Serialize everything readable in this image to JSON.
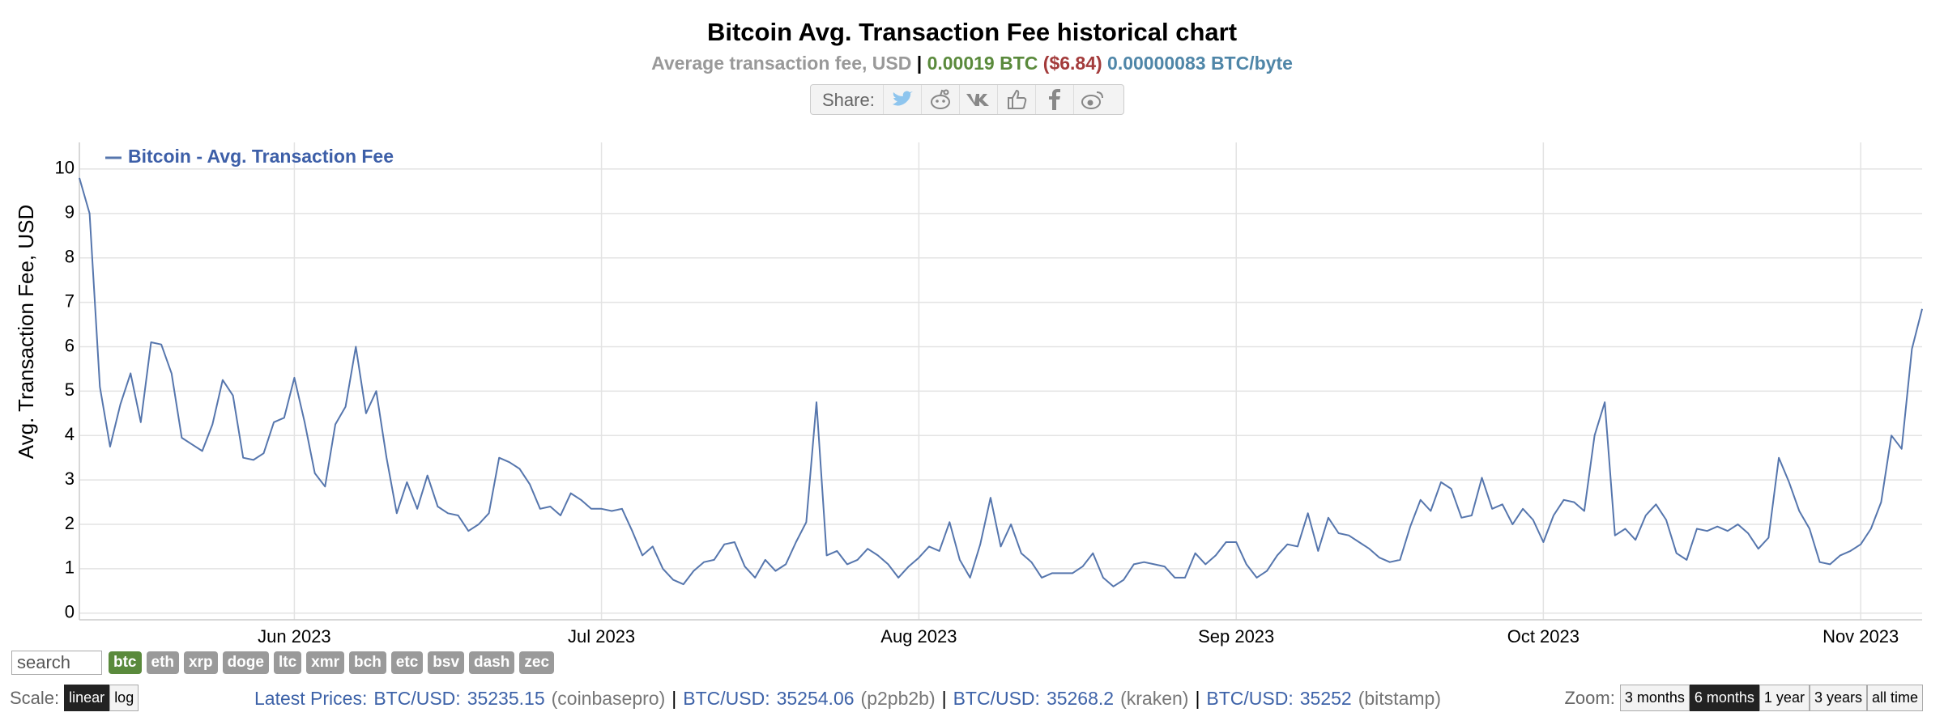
{
  "chart_data": {
    "type": "line",
    "title": "Bitcoin Avg. Transaction Fee historical chart",
    "ylabel": "Avg. Transaction Fee, USD",
    "categories": [
      null,
      null,
      null,
      null,
      null,
      null,
      null,
      null,
      null,
      null,
      null,
      null,
      null,
      null,
      null,
      null,
      null,
      null,
      null,
      null,
      null,
      "Jun 2023",
      null,
      null,
      null,
      null,
      null,
      null,
      null,
      null,
      null,
      null,
      null,
      null,
      null,
      null,
      null,
      null,
      null,
      null,
      null,
      null,
      null,
      null,
      null,
      null,
      null,
      null,
      null,
      null,
      null,
      "Jul 2023",
      null,
      null,
      null,
      null,
      null,
      null,
      null,
      null,
      null,
      null,
      null,
      null,
      null,
      null,
      null,
      null,
      null,
      null,
      null,
      null,
      null,
      null,
      null,
      null,
      null,
      null,
      null,
      null,
      null,
      null,
      "Aug 2023",
      null,
      null,
      null,
      null,
      null,
      null,
      null,
      null,
      null,
      null,
      null,
      null,
      null,
      null,
      null,
      null,
      null,
      null,
      null,
      null,
      null,
      null,
      null,
      null,
      null,
      null,
      null,
      null,
      null,
      null,
      "Sep 2023",
      null,
      null,
      null,
      null,
      null,
      null,
      null,
      null,
      null,
      null,
      null,
      null,
      null,
      null,
      null,
      null,
      null,
      null,
      null,
      null,
      null,
      null,
      null,
      null,
      null,
      null,
      null,
      null,
      null,
      "Oct 2023",
      null,
      null,
      null,
      null,
      null,
      null,
      null,
      null,
      null,
      null,
      null,
      null,
      null,
      null,
      null,
      null,
      null,
      null,
      null,
      null,
      null,
      null,
      null,
      null,
      null,
      null,
      null,
      null,
      null,
      null,
      "Nov 2023",
      null,
      null,
      null,
      null,
      null,
      null
    ],
    "series": [
      {
        "name": "Bitcoin - Avg. Transaction Fee",
        "color": "#5676ad",
        "values": [
          9.8,
          9.0,
          5.1,
          3.75,
          4.7,
          5.4,
          4.3,
          6.1,
          6.05,
          5.4,
          3.95,
          3.8,
          3.65,
          4.25,
          5.25,
          4.9,
          3.5,
          3.45,
          3.6,
          4.3,
          4.4,
          5.3,
          4.3,
          3.15,
          2.85,
          4.25,
          4.65,
          6.0,
          4.5,
          5.0,
          3.5,
          2.25,
          2.95,
          2.35,
          3.1,
          2.4,
          2.25,
          2.2,
          1.85,
          2.0,
          2.25,
          3.5,
          3.4,
          3.25,
          2.9,
          2.35,
          2.4,
          2.2,
          2.7,
          2.55,
          2.35,
          2.35,
          2.3,
          2.35,
          1.85,
          1.3,
          1.5,
          1.0,
          0.75,
          0.65,
          0.95,
          1.15,
          1.2,
          1.55,
          1.6,
          1.05,
          0.8,
          1.2,
          0.95,
          1.1,
          1.6,
          2.05,
          4.75,
          1.3,
          1.4,
          1.1,
          1.2,
          1.45,
          1.3,
          1.1,
          0.8,
          1.05,
          1.25,
          1.5,
          1.4,
          2.05,
          1.2,
          0.8,
          1.55,
          2.6,
          1.5,
          2.0,
          1.35,
          1.15,
          0.8,
          0.9,
          0.9,
          0.9,
          1.05,
          1.35,
          0.8,
          0.6,
          0.75,
          1.1,
          1.15,
          1.1,
          1.05,
          0.8,
          0.8,
          1.35,
          1.1,
          1.3,
          1.6,
          1.6,
          1.1,
          0.8,
          0.95,
          1.3,
          1.55,
          1.5,
          2.25,
          1.4,
          2.15,
          1.8,
          1.75,
          1.6,
          1.45,
          1.25,
          1.15,
          1.2,
          1.95,
          2.55,
          2.3,
          2.95,
          2.8,
          2.15,
          2.2,
          3.05,
          2.35,
          2.45,
          2.0,
          2.35,
          2.1,
          1.6,
          2.2,
          2.55,
          2.5,
          2.3,
          4.0,
          4.75,
          1.75,
          1.9,
          1.65,
          2.2,
          2.45,
          2.1,
          1.35,
          1.2,
          1.9,
          1.85,
          1.95,
          1.85,
          2.0,
          1.8,
          1.45,
          1.7,
          3.5,
          2.95,
          2.3,
          1.9,
          1.15,
          1.1,
          1.3,
          1.4,
          1.55,
          1.9,
          2.5,
          4.0,
          3.7,
          5.95,
          6.85
        ]
      }
    ],
    "ylim": [
      -0.15,
      10.6
    ],
    "yticks": [
      0,
      1,
      2,
      3,
      4,
      5,
      6,
      7,
      8,
      9,
      10
    ],
    "grid": true,
    "legend": "top-left"
  },
  "header": {
    "label": "Average transaction fee, USD",
    "separator": "|",
    "btc": "0.00019 BTC",
    "usd": "($6.84)",
    "per_byte": "0.00000083 BTC/byte"
  },
  "share": {
    "label": "Share:"
  },
  "controls": {
    "search_placeholder": "search",
    "coins": [
      "btc",
      "eth",
      "xrp",
      "doge",
      "ltc",
      "xmr",
      "bch",
      "etc",
      "bsv",
      "dash",
      "zec"
    ],
    "coin_active": 0,
    "scale_label": "Scale:",
    "scales": [
      "linear",
      "log"
    ],
    "scale_active": 0,
    "prices_label": "Latest Prices:",
    "separator": "|",
    "prices": [
      {
        "pair": "BTC/USD:",
        "price": 35235.15,
        "source": "(coinbasepro)"
      },
      {
        "pair": "BTC/USD:",
        "price": 35254.06,
        "source": "(p2pb2b)"
      },
      {
        "pair": "BTC/USD:",
        "price": 35268.2,
        "source": "(kraken)"
      },
      {
        "pair": "BTC/USD:",
        "price": 35252,
        "source": "(bitstamp)"
      }
    ],
    "zoom_label": "Zoom:",
    "zooms": [
      "3 months",
      "6 months",
      "1 year",
      "3 years",
      "all time"
    ],
    "zoom_active": 1
  }
}
